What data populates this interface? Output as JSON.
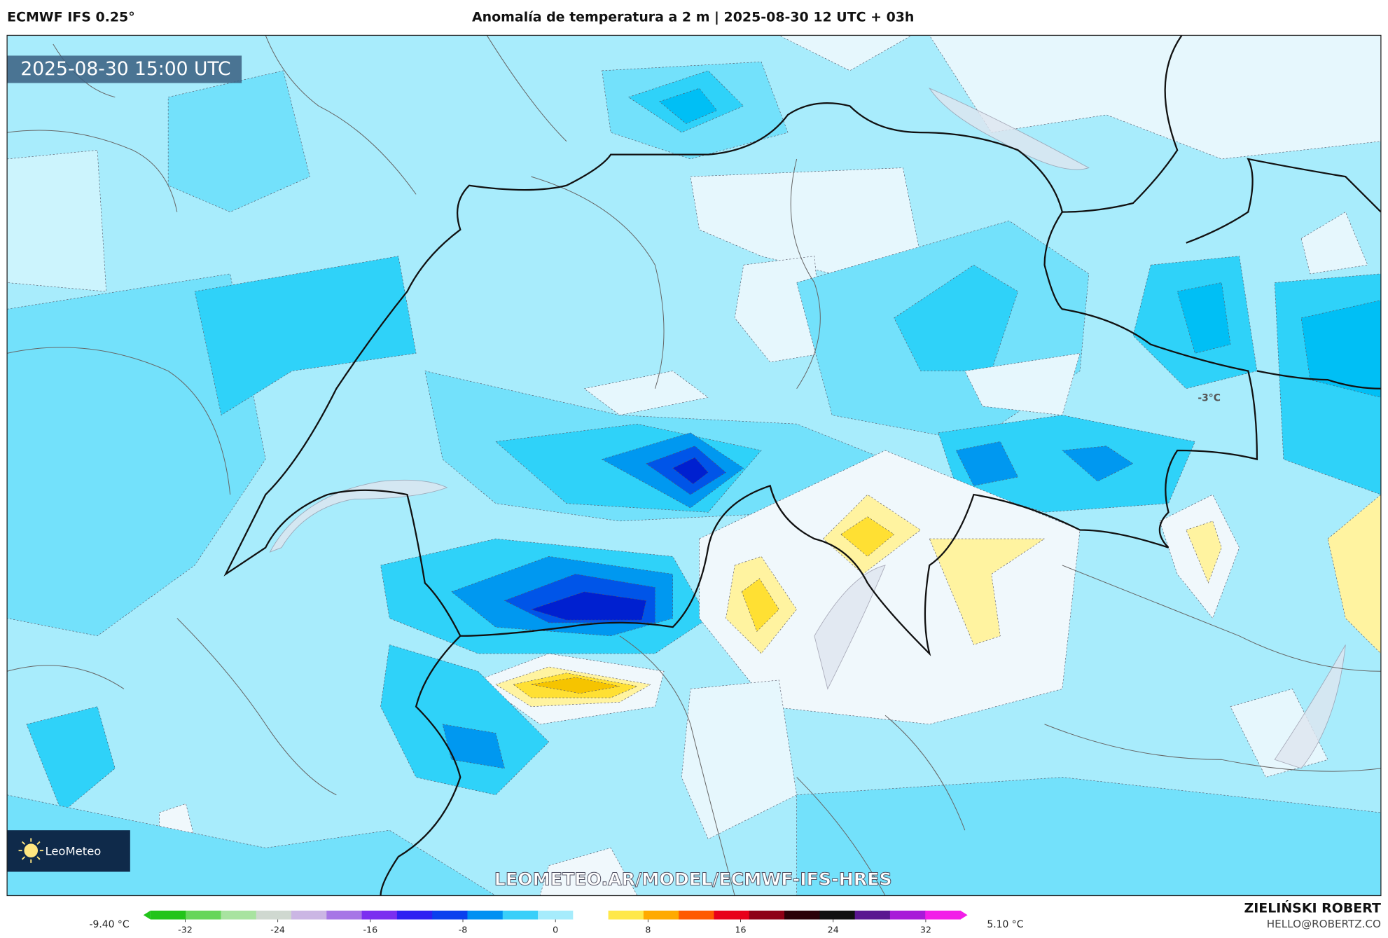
{
  "header": {
    "model": "ECMWF IFS 0.25°",
    "title": "Anomalía de temperatura a 2 m | 2025-08-30 12 UTC + 03h"
  },
  "map": {
    "timestamp": "2025-08-30 15:00 UTC",
    "point_label": "-3°C",
    "watermark": "LEOMETEO.AR/MODEL/ECMWF-IFS-HRES",
    "logo": "LeoMeteo"
  },
  "colorbar": {
    "min_label": "-9.40 °C",
    "max_label": "5.10 °C",
    "lim": [
      -35,
      35
    ],
    "ticks": [
      -32,
      -24,
      -16,
      -8,
      0,
      8,
      16,
      24,
      32
    ],
    "colors": [
      "#22c41a",
      "#66d65a",
      "#a8e3a0",
      "#cfd8d0",
      "#cbb6e4",
      "#a776e6",
      "#7b2ff0",
      "#2f1ff2",
      "#0a40ee",
      "#0090f2",
      "#39cff9",
      "#a6ecfc",
      "#ffffff",
      "#ffe84a",
      "#ffaa00",
      "#ff5a00",
      "#e8001a",
      "#8e0016",
      "#2a0008",
      "#101010",
      "#5a1690",
      "#a81ad8",
      "#f21ee8"
    ]
  },
  "author": {
    "name": "ZIELIŃSKI ROBERT",
    "contact": "HELLO@ROBERTZ.CO"
  }
}
